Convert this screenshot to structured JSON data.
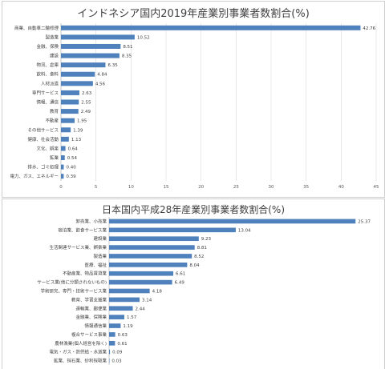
{
  "chart_data": [
    {
      "type": "bar",
      "orientation": "horizontal",
      "title": "インドネシア国内2019年産業別事業者数割合(%)",
      "categories": [
        "商業、自動車二輪修理",
        "製造業",
        "金融、保険",
        "建設",
        "物流、倉庫",
        "飲料、食料",
        "人材派遣",
        "専門サービス",
        "情報、通信",
        "教育",
        "不動産",
        "その他サービス",
        "健康、社会活動",
        "文化、娯楽",
        "鉱業",
        "排水、ゴミ処理",
        "電力、ガス、エネルギー"
      ],
      "values": [
        42.76,
        10.52,
        8.51,
        8.35,
        6.35,
        4.84,
        4.56,
        2.63,
        2.55,
        2.49,
        1.95,
        1.39,
        1.13,
        0.64,
        0.54,
        0.4,
        0.39
      ],
      "value_labels": [
        "42.76",
        "10.52",
        "8.51",
        "8.35",
        "6.35",
        "4.84",
        "4.56",
        "2.63",
        "2.55",
        "2.49",
        "1.95",
        "1.39",
        "1.13",
        "0.64",
        "0.54",
        "0.40",
        "0.39"
      ],
      "xlim": [
        0,
        45
      ],
      "xticks": [
        0,
        5,
        10,
        15,
        20,
        25,
        30,
        35,
        40,
        45
      ],
      "grid": true,
      "bar_color": "#4f81bd"
    },
    {
      "type": "bar",
      "orientation": "horizontal",
      "title": "日本国内平成28年産業別事業者数割合(%)",
      "categories": [
        "卸売業、小売業",
        "宿泊業、飲食サービス業",
        "建設業",
        "生活関連サービス業、娯楽業",
        "製造業",
        "医療、福祉",
        "不動産業、物品賃貸業",
        "サービス業(他に分類されないもの)",
        "学術研究、専門・技術サービス業",
        "教育、学習支援業",
        "運輸業、郵便業",
        "金融業、保険業",
        "情報通信業",
        "複合サービス事業",
        "農林漁業(個人経営を除く)",
        "電気・ガス・熱供給・水道業",
        "鉱業、採石業、砂利採取業"
      ],
      "values": [
        25.37,
        13.04,
        9.23,
        8.81,
        8.52,
        8.04,
        6.61,
        6.49,
        4.18,
        3.14,
        2.44,
        1.57,
        1.19,
        0.63,
        0.61,
        0.09,
        0.03
      ],
      "value_labels": [
        "25.37",
        "13.04",
        "9.23",
        "8.81",
        "8.52",
        "8.04",
        "6.61",
        "6.49",
        "4.18",
        "3.14",
        "2.44",
        "1.57",
        "1.19",
        "0.63",
        "0.61",
        "0.09",
        "0.03"
      ],
      "xlim": [
        0,
        27
      ],
      "grid": false,
      "bar_color": "#4f81bd"
    }
  ]
}
